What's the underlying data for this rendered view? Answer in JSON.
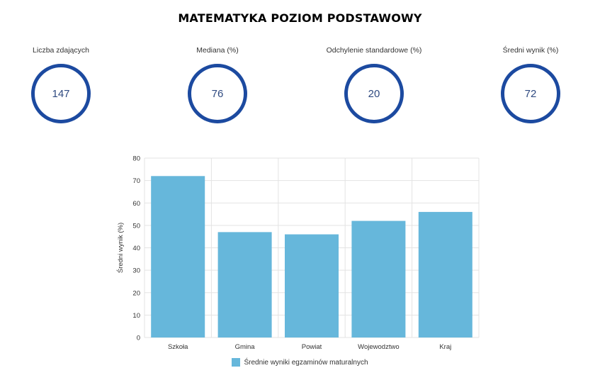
{
  "title": "MATEMATYKA POZIOM PODSTAWOWY",
  "kpis": [
    {
      "label": "Liczba zdających",
      "value": "147"
    },
    {
      "label": "Mediana (%)",
      "value": "76"
    },
    {
      "label": "Odchylenie standardowe (%)",
      "value": "20"
    },
    {
      "label": "Średni wynik (%)",
      "value": "72"
    }
  ],
  "colors": {
    "ring": "#1c4aa0",
    "bar": "#66b7db",
    "grid": "#e3e3e3"
  },
  "chart_data": {
    "type": "bar",
    "categories": [
      "Szkoła",
      "Gmina",
      "Powiat",
      "Wojewodztwo",
      "Kraj"
    ],
    "series": [
      {
        "name": "Średnie wyniki egzaminów maturalnych",
        "values": [
          72,
          47,
          46,
          52,
          56
        ]
      }
    ],
    "ylabel": "Średni wynik (%)",
    "xlabel": "",
    "ylim": [
      0,
      80
    ],
    "yticks": [
      0,
      10,
      20,
      30,
      40,
      50,
      60,
      70,
      80
    ],
    "grid": true,
    "legend": "bottom-center"
  }
}
